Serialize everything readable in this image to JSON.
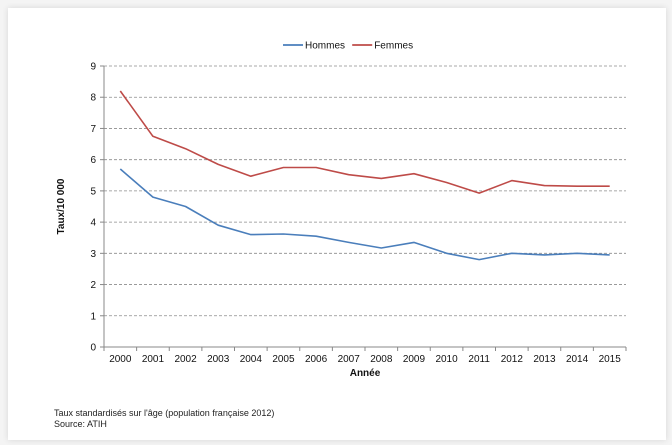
{
  "chart_data": {
    "type": "line",
    "x": [
      "2000",
      "2001",
      "2002",
      "2003",
      "2004",
      "2005",
      "2006",
      "2007",
      "2008",
      "2009",
      "2010",
      "2011",
      "2012",
      "2013",
      "2014",
      "2015"
    ],
    "series": [
      {
        "name": "Hommes",
        "color": "#4a7ebb",
        "values": [
          5.7,
          4.8,
          4.5,
          3.9,
          3.6,
          3.62,
          3.55,
          3.35,
          3.17,
          3.35,
          3.0,
          2.8,
          3.0,
          2.95,
          3.0,
          2.95
        ]
      },
      {
        "name": "Femmes",
        "color": "#be4b48",
        "values": [
          8.2,
          6.75,
          6.35,
          5.85,
          5.47,
          5.75,
          5.75,
          5.52,
          5.4,
          5.55,
          5.27,
          4.93,
          5.33,
          5.17,
          5.15,
          5.15
        ]
      }
    ],
    "yticks": [
      "0",
      "1",
      "2",
      "3",
      "4",
      "5",
      "6",
      "7",
      "8",
      "9"
    ],
    "ylim": [
      0,
      9
    ],
    "xlabel": "Année",
    "ylabel": "Taux/10 000",
    "grid": "horizontal dashed",
    "legend_position": "top-center"
  },
  "notes": {
    "line1": "Taux standardisés sur l'âge (population française 2012)",
    "line2": "Source: ATIH"
  }
}
